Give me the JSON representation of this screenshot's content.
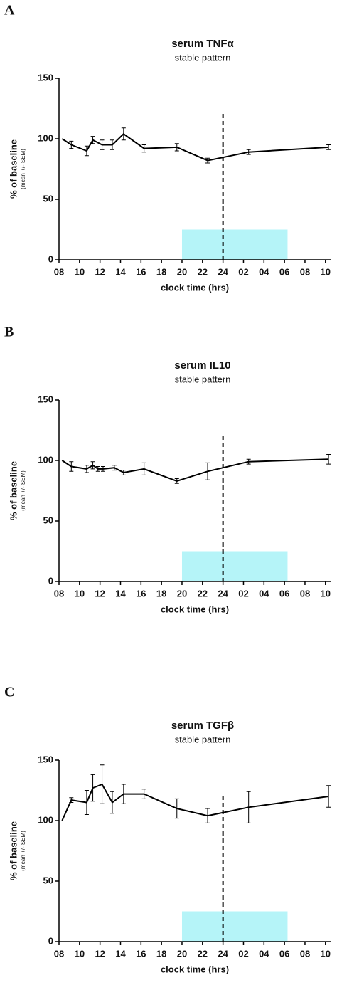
{
  "chart_data": [
    {
      "type": "line",
      "label": "A",
      "title": "serum TNFα",
      "subtitle": "stable pattern",
      "xlabel": "clock time (hrs)",
      "ylabel": "% of baseline",
      "ylabel_note": "(mean +/- SEM)",
      "x": [
        8.3,
        9.2,
        10.7,
        11.3,
        12.2,
        13.2,
        14.3,
        16.3,
        19.5,
        22.5,
        26.5,
        34.3
      ],
      "values": [
        100,
        95,
        90,
        99,
        95,
        95,
        104,
        92,
        93,
        82,
        89,
        93
      ],
      "errors": [
        null,
        3,
        4,
        3,
        4,
        4,
        5,
        3,
        3,
        2,
        2,
        2
      ],
      "color": "#000000",
      "xlim": [
        8,
        34.5
      ],
      "ylim": [
        0,
        150
      ],
      "yticks": [
        0,
        50,
        100,
        150
      ],
      "xticks": [
        {
          "value": 8,
          "label": "08"
        },
        10,
        12,
        14,
        16,
        18,
        20,
        22,
        24,
        {
          "value": 26,
          "label": "02"
        },
        {
          "value": 28,
          "label": "04"
        },
        {
          "value": 30,
          "label": "06"
        },
        {
          "value": 32,
          "label": "08"
        },
        {
          "value": 34,
          "label": "10"
        }
      ],
      "vline": 24,
      "shade": {
        "x": [
          20,
          30.3
        ],
        "y": [
          0,
          25
        ],
        "color": "#b5f4f8"
      }
    },
    {
      "type": "line",
      "label": "B",
      "title": "serum IL10",
      "subtitle": "stable pattern",
      "xlabel": "clock time (hrs)",
      "ylabel": "% of baseline",
      "ylabel_note": "(mean +/- SEM)",
      "x": [
        8.3,
        9.2,
        10.7,
        11.3,
        11.8,
        12.3,
        13.4,
        14.3,
        16.3,
        19.5,
        22.5,
        26.5,
        34.3
      ],
      "values": [
        100,
        95,
        93,
        96,
        93,
        93,
        94,
        90,
        93,
        83,
        91,
        99,
        101
      ],
      "errors": [
        null,
        4,
        3,
        3,
        2,
        2,
        2,
        2,
        5,
        2,
        7,
        2,
        4
      ],
      "color": "#000000",
      "xlim": [
        8,
        34.5
      ],
      "ylim": [
        0,
        150
      ],
      "yticks": [
        0,
        50,
        100,
        150
      ],
      "xticks": [
        {
          "value": 8,
          "label": "08"
        },
        10,
        12,
        14,
        16,
        18,
        20,
        22,
        24,
        {
          "value": 26,
          "label": "02"
        },
        {
          "value": 28,
          "label": "04"
        },
        {
          "value": 30,
          "label": "06"
        },
        {
          "value": 32,
          "label": "08"
        },
        {
          "value": 34,
          "label": "10"
        }
      ],
      "vline": 24,
      "shade": {
        "x": [
          20,
          30.3
        ],
        "y": [
          0,
          25
        ],
        "color": "#b5f4f8"
      }
    },
    {
      "type": "line",
      "label": "C",
      "title": "serum TGFβ",
      "subtitle": "stable pattern",
      "xlabel": "clock time (hrs)",
      "ylabel": "% of baseline",
      "ylabel_note": "(mean +/- SEM)",
      "x": [
        8.3,
        9.2,
        10.7,
        11.3,
        12.2,
        13.2,
        14.3,
        16.3,
        19.5,
        22.5,
        26.5,
        34.3
      ],
      "values": [
        100,
        117,
        115,
        127,
        130,
        115,
        122,
        122,
        110,
        104,
        111,
        120
      ],
      "errors": [
        null,
        2,
        10,
        11,
        16,
        9,
        8,
        4,
        8,
        6,
        13,
        9
      ],
      "color": "#000000",
      "xlim": [
        8,
        34.5
      ],
      "ylim": [
        0,
        150
      ],
      "yticks": [
        0,
        50,
        100,
        150
      ],
      "xticks": [
        {
          "value": 8,
          "label": "08"
        },
        10,
        12,
        14,
        16,
        18,
        20,
        22,
        24,
        {
          "value": 26,
          "label": "02"
        },
        {
          "value": 28,
          "label": "04"
        },
        {
          "value": 30,
          "label": "06"
        },
        {
          "value": 32,
          "label": "08"
        },
        {
          "value": 34,
          "label": "10"
        }
      ],
      "vline": 24,
      "shade": {
        "x": [
          20,
          30.3
        ],
        "y": [
          0,
          25
        ],
        "color": "#b5f4f8"
      }
    }
  ]
}
